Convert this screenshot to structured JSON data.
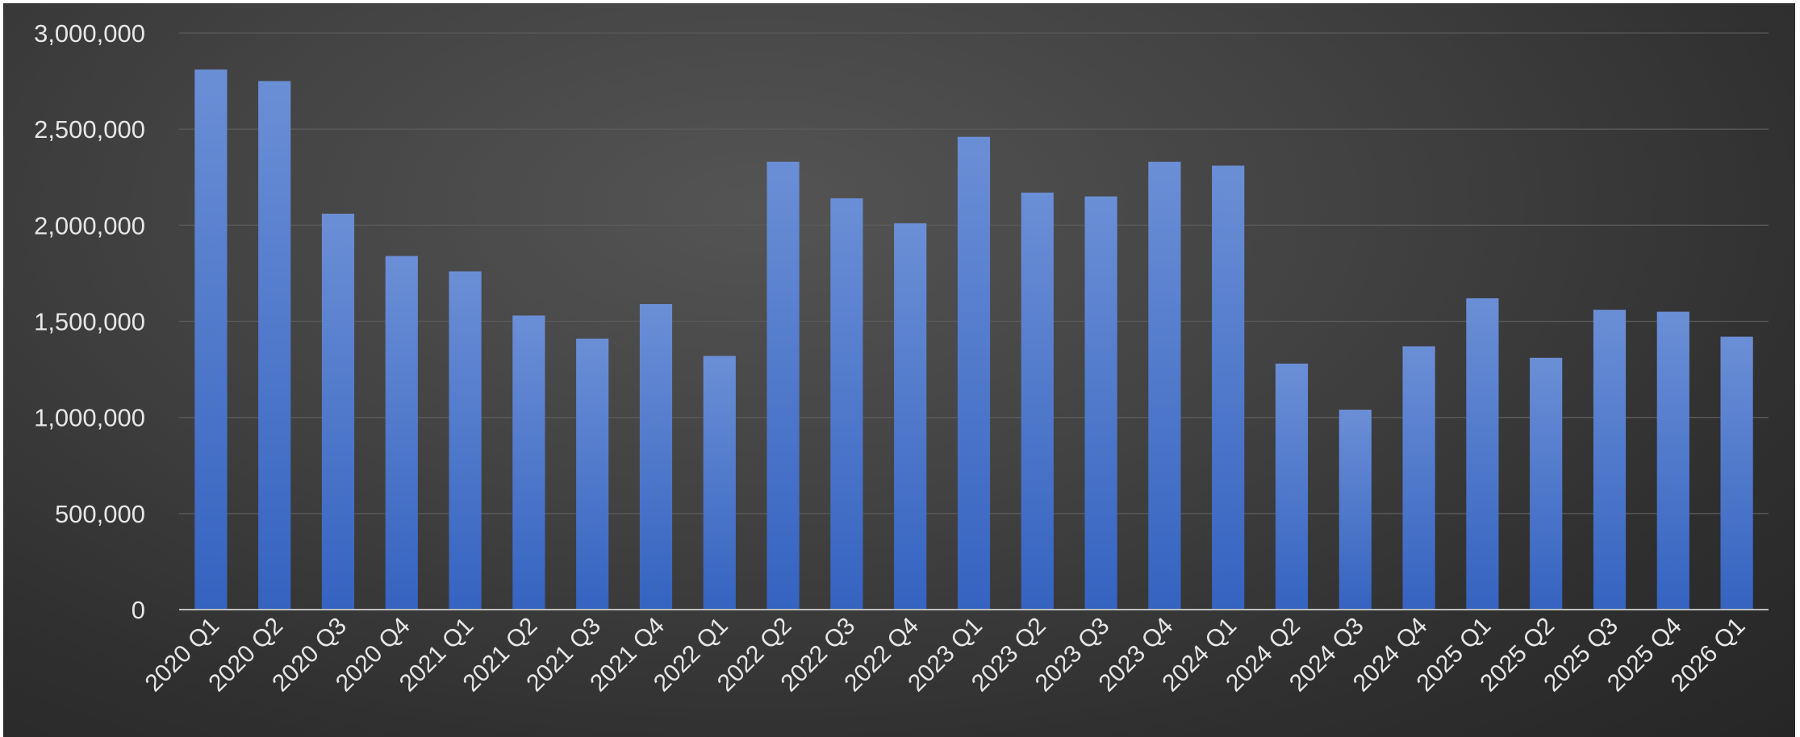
{
  "chart_data": {
    "type": "bar",
    "title": "",
    "xlabel": "",
    "ylabel": "",
    "ylim": [
      0,
      3000000
    ],
    "yticks": [
      0,
      500000,
      1000000,
      1500000,
      2000000,
      2500000,
      3000000
    ],
    "ytick_labels": [
      "0",
      "500,000",
      "1,000,000",
      "1,500,000",
      "2,000,000",
      "2,500,000",
      "3,000,000"
    ],
    "grid": true,
    "legend": "none",
    "bar_color_top": "#6b8fd6",
    "bar_color_bottom": "#3563c0",
    "categories": [
      "2020 Q1",
      "2020 Q2",
      "2020 Q3",
      "2020 Q4",
      "2021 Q1",
      "2021 Q2",
      "2021 Q3",
      "2021 Q4",
      "2022 Q1",
      "2022 Q2",
      "2022 Q3",
      "2022 Q4",
      "2023 Q1",
      "2023 Q2",
      "2023 Q3",
      "2023 Q4",
      "2024 Q1",
      "2024 Q2",
      "2024 Q3",
      "2024 Q4",
      "2025 Q1",
      "2025 Q2",
      "2025 Q3",
      "2025 Q4",
      "2026 Q1"
    ],
    "values": [
      2810000,
      2750000,
      2060000,
      1840000,
      1760000,
      1530000,
      1410000,
      1590000,
      1320000,
      2330000,
      2140000,
      2010000,
      2460000,
      2170000,
      2150000,
      2330000,
      2310000,
      1280000,
      1040000,
      1370000,
      1620000,
      1310000,
      1560000,
      1550000,
      1420000
    ]
  }
}
